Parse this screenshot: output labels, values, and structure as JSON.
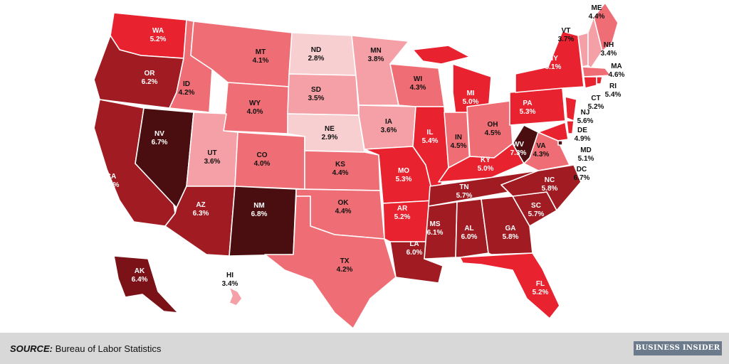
{
  "colors": {
    "scale": [
      "#f8cfd1",
      "#f4a0a6",
      "#ef6e75",
      "#e8222f",
      "#a01c22",
      "#7a1218",
      "#4a0e10"
    ],
    "footer_bg": "#d8d8d8",
    "brand_bg": "#6b7b8c"
  },
  "states": [
    {
      "abbr": "WA",
      "rate": "5.2%",
      "value": 5.2
    },
    {
      "abbr": "OR",
      "rate": "6.2%",
      "value": 6.2
    },
    {
      "abbr": "CA",
      "rate": "5.9%",
      "value": 5.9
    },
    {
      "abbr": "NV",
      "rate": "6.7%",
      "value": 6.7
    },
    {
      "abbr": "ID",
      "rate": "4.2%",
      "value": 4.2
    },
    {
      "abbr": "MT",
      "rate": "4.1%",
      "value": 4.1
    },
    {
      "abbr": "WY",
      "rate": "4.0%",
      "value": 4.0
    },
    {
      "abbr": "UT",
      "rate": "3.6%",
      "value": 3.6
    },
    {
      "abbr": "AZ",
      "rate": "6.3%",
      "value": 6.3
    },
    {
      "abbr": "CO",
      "rate": "4.0%",
      "value": 4.0
    },
    {
      "abbr": "NM",
      "rate": "6.8%",
      "value": 6.8
    },
    {
      "abbr": "ND",
      "rate": "2.8%",
      "value": 2.8
    },
    {
      "abbr": "SD",
      "rate": "3.5%",
      "value": 3.5
    },
    {
      "abbr": "NE",
      "rate": "2.9%",
      "value": 2.9
    },
    {
      "abbr": "KS",
      "rate": "4.4%",
      "value": 4.4
    },
    {
      "abbr": "OK",
      "rate": "4.4%",
      "value": 4.4
    },
    {
      "abbr": "TX",
      "rate": "4.2%",
      "value": 4.2
    },
    {
      "abbr": "MN",
      "rate": "3.8%",
      "value": 3.8
    },
    {
      "abbr": "IA",
      "rate": "3.6%",
      "value": 3.6
    },
    {
      "abbr": "MO",
      "rate": "5.3%",
      "value": 5.3
    },
    {
      "abbr": "AR",
      "rate": "5.2%",
      "value": 5.2
    },
    {
      "abbr": "LA",
      "rate": "6.0%",
      "value": 6.0
    },
    {
      "abbr": "WI",
      "rate": "4.3%",
      "value": 4.3
    },
    {
      "abbr": "IL",
      "rate": "5.4%",
      "value": 5.4
    },
    {
      "abbr": "MI",
      "rate": "5.0%",
      "value": 5.0
    },
    {
      "abbr": "IN",
      "rate": "4.5%",
      "value": 4.5
    },
    {
      "abbr": "OH",
      "rate": "4.5%",
      "value": 4.5
    },
    {
      "abbr": "KY",
      "rate": "5.0%",
      "value": 5.0
    },
    {
      "abbr": "TN",
      "rate": "5.7%",
      "value": 5.7
    },
    {
      "abbr": "MS",
      "rate": "6.1%",
      "value": 6.1
    },
    {
      "abbr": "AL",
      "rate": "6.0%",
      "value": 6.0
    },
    {
      "abbr": "GA",
      "rate": "5.8%",
      "value": 5.8
    },
    {
      "abbr": "FL",
      "rate": "5.2%",
      "value": 5.2
    },
    {
      "abbr": "SC",
      "rate": "5.7%",
      "value": 5.7
    },
    {
      "abbr": "NC",
      "rate": "5.8%",
      "value": 5.8
    },
    {
      "abbr": "VA",
      "rate": "4.3%",
      "value": 4.3
    },
    {
      "abbr": "WV",
      "rate": "7.3%",
      "value": 7.3
    },
    {
      "abbr": "PA",
      "rate": "5.3%",
      "value": 5.3
    },
    {
      "abbr": "NY",
      "rate": "5.1%",
      "value": 5.1
    },
    {
      "abbr": "VT",
      "rate": "3.7%",
      "value": 3.7
    },
    {
      "abbr": "NH",
      "rate": "3.4%",
      "value": 3.4
    },
    {
      "abbr": "ME",
      "rate": "4.4%",
      "value": 4.4
    },
    {
      "abbr": "MA",
      "rate": "4.6%",
      "value": 4.6
    },
    {
      "abbr": "RI",
      "rate": "5.4%",
      "value": 5.4
    },
    {
      "abbr": "CT",
      "rate": "5.2%",
      "value": 5.2
    },
    {
      "abbr": "NJ",
      "rate": "5.6%",
      "value": 5.6
    },
    {
      "abbr": "DE",
      "rate": "4.9%",
      "value": 4.9
    },
    {
      "abbr": "MD",
      "rate": "5.1%",
      "value": 5.1
    },
    {
      "abbr": "DC",
      "rate": "6.7%",
      "value": 6.7
    },
    {
      "abbr": "AK",
      "rate": "6.4%",
      "value": 6.4
    },
    {
      "abbr": "HI",
      "rate": "3.4%",
      "value": 3.4
    }
  ],
  "footer": {
    "source_label": "SOURCE:",
    "source_text": " Bureau of Labor Statistics",
    "brand": "BUSINESS INSIDER"
  }
}
